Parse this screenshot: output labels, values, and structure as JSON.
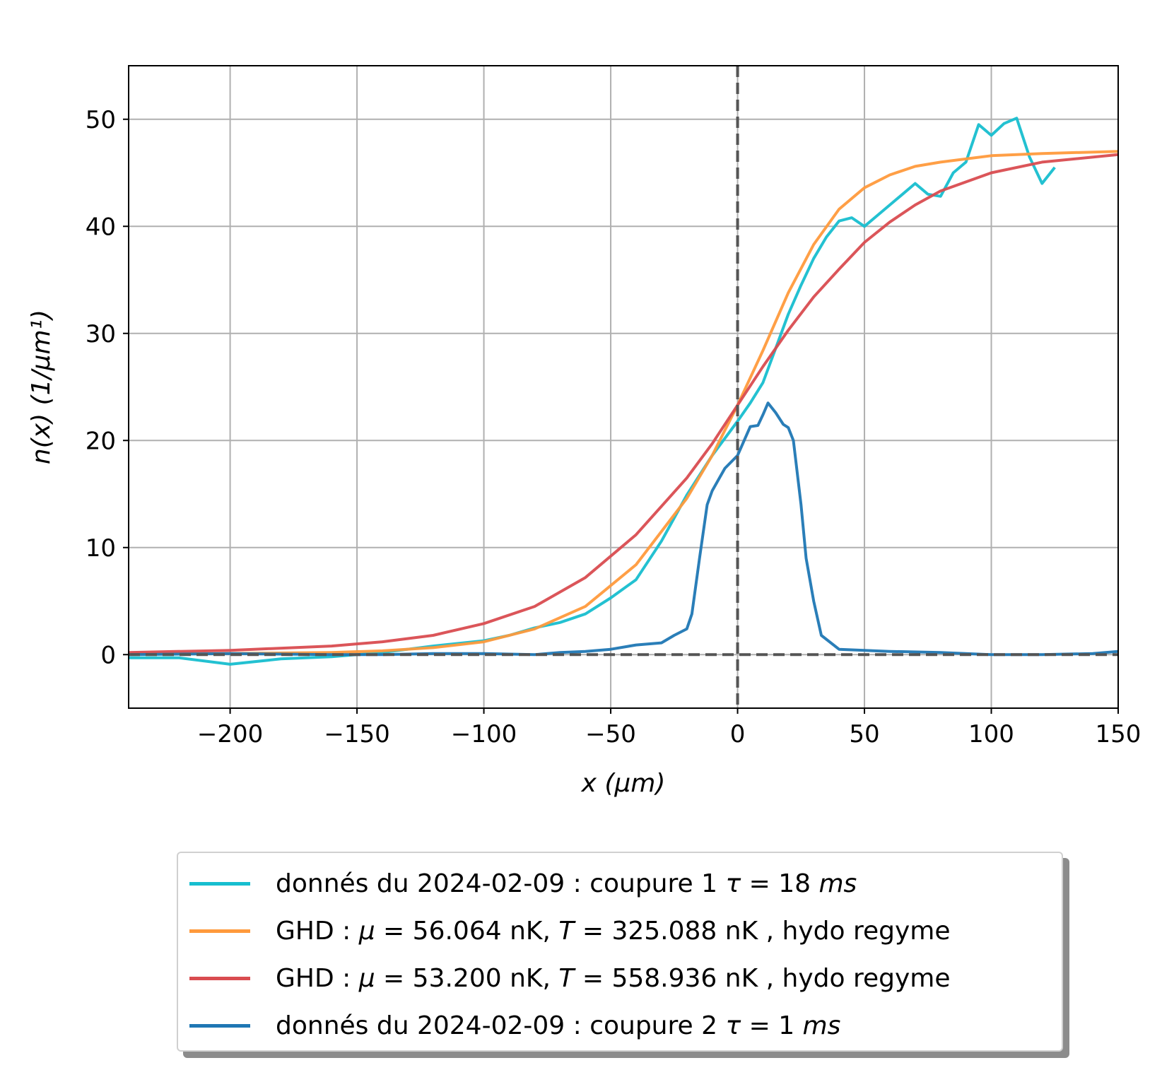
{
  "chart_data": {
    "type": "line",
    "xlabel": "x   (μm)",
    "ylabel": "n(x)   (1/μm¹)",
    "xlim": [
      -240,
      150
    ],
    "ylim": [
      -5,
      55
    ],
    "xticks": [
      -200,
      -150,
      -100,
      -50,
      0,
      50,
      100,
      150
    ],
    "yticks": [
      0,
      10,
      20,
      30,
      40,
      50
    ],
    "xtick_labels": [
      "−200",
      "−150",
      "−100",
      "−50",
      "0",
      "50",
      "100",
      "150"
    ],
    "ytick_labels": [
      "0",
      "10",
      "20",
      "30",
      "40",
      "50"
    ],
    "grid": true,
    "reference_lines": {
      "vertical_x": 0,
      "horizontal_y": 0,
      "style": "dashed",
      "color": "#555555"
    },
    "legend_placement": "below",
    "series": [
      {
        "name": "donnés du 2024-02-09 : coupure 1 τ = 18 ms",
        "color": "#17becf",
        "x": [
          -240,
          -220,
          -200,
          -180,
          -160,
          -140,
          -120,
          -100,
          -90,
          -80,
          -70,
          -60,
          -50,
          -40,
          -30,
          -20,
          -10,
          0,
          5,
          10,
          15,
          20,
          25,
          30,
          35,
          40,
          45,
          50,
          55,
          60,
          65,
          70,
          75,
          80,
          85,
          90,
          95,
          100,
          105,
          110,
          115,
          120,
          125
        ],
        "y": [
          -0.3,
          -0.3,
          -0.9,
          -0.4,
          -0.2,
          0.2,
          0.8,
          1.3,
          1.8,
          2.5,
          3.0,
          3.8,
          5.3,
          7.0,
          10.6,
          14.9,
          18.6,
          21.8,
          23.5,
          25.4,
          28.6,
          31.8,
          34.5,
          37.0,
          39.0,
          40.5,
          40.8,
          40.0,
          41.0,
          42.0,
          43.0,
          44.0,
          43.0,
          42.8,
          45.0,
          46.0,
          49.5,
          48.5,
          49.6,
          50.1,
          46.5,
          44.0,
          45.5
        ]
      },
      {
        "name": "GHD : μ = 56.064 nK, T = 325.088 nK , hydo regyme",
        "color": "#ff9a3c",
        "x": [
          -240,
          -200,
          -160,
          -140,
          -120,
          -100,
          -80,
          -60,
          -40,
          -20,
          -10,
          0,
          10,
          20,
          30,
          40,
          50,
          60,
          70,
          80,
          100,
          120,
          150
        ],
        "y": [
          0.05,
          0.1,
          0.2,
          0.35,
          0.65,
          1.2,
          2.4,
          4.5,
          8.4,
          14.6,
          18.6,
          23.3,
          28.4,
          33.8,
          38.3,
          41.6,
          43.6,
          44.8,
          45.6,
          46.0,
          46.6,
          46.8,
          47.0
        ]
      },
      {
        "name": "GHD : μ = 53.200 nK, T = 558.936 nK , hydo regyme",
        "color": "#d94c50",
        "x": [
          -240,
          -200,
          -160,
          -140,
          -120,
          -100,
          -80,
          -60,
          -40,
          -20,
          -10,
          0,
          10,
          20,
          30,
          40,
          50,
          60,
          70,
          80,
          100,
          120,
          150
        ],
        "y": [
          0.2,
          0.4,
          0.8,
          1.2,
          1.8,
          2.9,
          4.5,
          7.2,
          11.2,
          16.5,
          19.7,
          23.3,
          26.9,
          30.3,
          33.4,
          36.0,
          38.5,
          40.4,
          42.0,
          43.3,
          45.0,
          46.0,
          46.7
        ]
      },
      {
        "name": "donnés du 2024-02-09 : coupure 2 τ = 1 ms",
        "color": "#1f77b4",
        "x": [
          -240,
          -200,
          -160,
          -140,
          -120,
          -100,
          -80,
          -70,
          -60,
          -50,
          -40,
          -30,
          -25,
          -20,
          -18,
          -15,
          -12,
          -10,
          -5,
          0,
          5,
          8,
          10,
          12,
          15,
          18,
          20,
          22,
          25,
          27,
          30,
          33,
          40,
          60,
          80,
          100,
          120,
          140,
          150
        ],
        "y": [
          0.0,
          0.1,
          0.0,
          0.0,
          0.1,
          0.1,
          0.0,
          0.2,
          0.3,
          0.5,
          0.9,
          1.1,
          1.8,
          2.4,
          3.8,
          9.0,
          14.0,
          15.3,
          17.4,
          18.6,
          21.3,
          21.4,
          22.4,
          23.5,
          22.6,
          21.5,
          21.2,
          20.0,
          14.0,
          9.0,
          5.0,
          1.8,
          0.5,
          0.3,
          0.2,
          0.0,
          0.0,
          0.1,
          0.3
        ]
      }
    ]
  },
  "legend": {
    "entries": [
      {
        "color": "#17becf",
        "prefix": "donnés du 2024-02-09 : coupure 1 ",
        "tau": "τ",
        "eq": " = 18 ",
        "unit": "ms"
      },
      {
        "color": "#ff9a3c",
        "prefix": "GHD : ",
        "mu": "μ",
        "mid": " = 56.064 nK, ",
        "t": "T",
        "suffix": " = 325.088 nK , hydo regyme"
      },
      {
        "color": "#d94c50",
        "prefix": "GHD : ",
        "mu": "μ",
        "mid": " = 53.200 nK, ",
        "t": "T",
        "suffix": " = 558.936 nK , hydo regyme"
      },
      {
        "color": "#1f77b4",
        "prefix": "donnés du 2024-02-09 : coupure 2 ",
        "tau": "τ",
        "eq": " = 1 ",
        "unit": "ms"
      }
    ]
  }
}
